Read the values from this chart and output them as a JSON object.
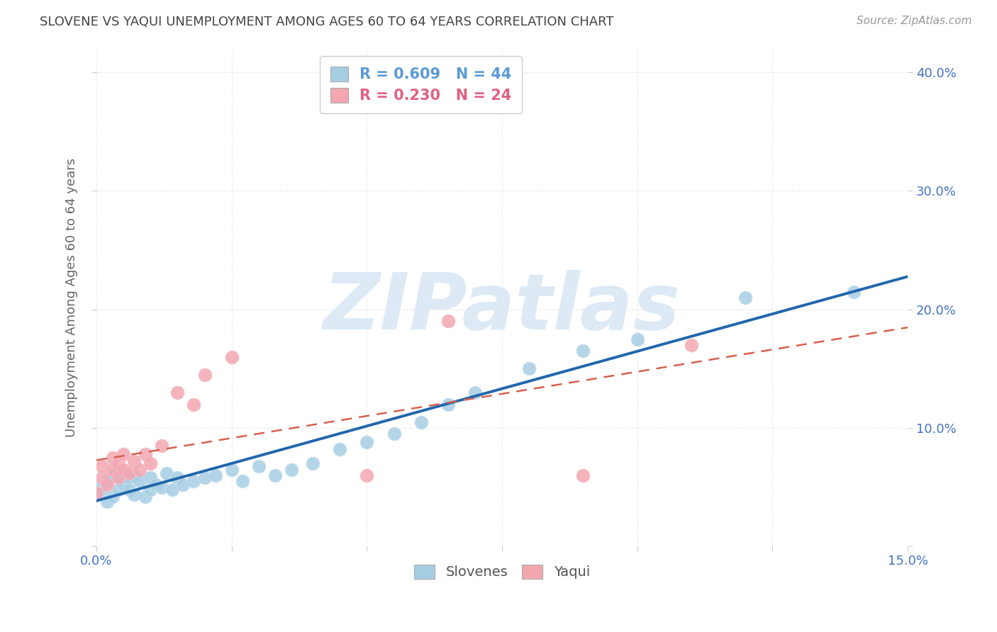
{
  "title": "SLOVENE VS YAQUI UNEMPLOYMENT AMONG AGES 60 TO 64 YEARS CORRELATION CHART",
  "source": "Source: ZipAtlas.com",
  "ylabel": "Unemployment Among Ages 60 to 64 years",
  "xlim": [
    0.0,
    0.15
  ],
  "ylim": [
    0.0,
    0.42
  ],
  "xticks": [
    0.0,
    0.025,
    0.05,
    0.075,
    0.1,
    0.125,
    0.15
  ],
  "xtick_labels": [
    "0.0%",
    "",
    "",
    "",
    "",
    "",
    "15.0%"
  ],
  "yticks": [
    0.0,
    0.1,
    0.2,
    0.3,
    0.4
  ],
  "ytick_labels_left": [
    "",
    "",
    "",
    "",
    ""
  ],
  "ytick_labels_right": [
    "",
    "10.0%",
    "20.0%",
    "30.0%",
    "40.0%"
  ],
  "legend1_label": "R = 0.609   N = 44",
  "legend2_label": "R = 0.230   N = 24",
  "legend1_text_color": "#5b9bd5",
  "legend2_text_color": "#e06080",
  "slovene_x": [
    0.0,
    0.001,
    0.002,
    0.002,
    0.003,
    0.003,
    0.004,
    0.004,
    0.005,
    0.005,
    0.006,
    0.006,
    0.007,
    0.007,
    0.008,
    0.009,
    0.01,
    0.01,
    0.011,
    0.012,
    0.013,
    0.014,
    0.015,
    0.016,
    0.018,
    0.02,
    0.022,
    0.025,
    0.027,
    0.03,
    0.033,
    0.036,
    0.04,
    0.045,
    0.05,
    0.055,
    0.06,
    0.065,
    0.07,
    0.08,
    0.09,
    0.1,
    0.12,
    0.14
  ],
  "slovene_y": [
    0.05,
    0.045,
    0.038,
    0.055,
    0.042,
    0.06,
    0.048,
    0.058,
    0.052,
    0.062,
    0.048,
    0.058,
    0.044,
    0.06,
    0.055,
    0.042,
    0.048,
    0.058,
    0.052,
    0.05,
    0.062,
    0.048,
    0.058,
    0.052,
    0.055,
    0.058,
    0.06,
    0.065,
    0.055,
    0.068,
    0.06,
    0.065,
    0.07,
    0.082,
    0.088,
    0.095,
    0.105,
    0.12,
    0.13,
    0.15,
    0.165,
    0.175,
    0.21,
    0.215
  ],
  "yaqui_x": [
    0.0,
    0.001,
    0.001,
    0.002,
    0.003,
    0.003,
    0.004,
    0.004,
    0.005,
    0.005,
    0.006,
    0.007,
    0.008,
    0.009,
    0.01,
    0.012,
    0.015,
    0.018,
    0.02,
    0.025,
    0.05,
    0.065,
    0.09,
    0.11
  ],
  "yaqui_y": [
    0.045,
    0.058,
    0.068,
    0.052,
    0.065,
    0.075,
    0.058,
    0.07,
    0.065,
    0.078,
    0.062,
    0.072,
    0.065,
    0.078,
    0.07,
    0.085,
    0.13,
    0.12,
    0.145,
    0.16,
    0.06,
    0.19,
    0.06,
    0.17
  ],
  "slovene_line_color": "#2166ac",
  "yaqui_line_color": "#d6604d",
  "yaqui_line_dash_color": "#d6604d",
  "slovene_marker_color": "#a6cee3",
  "yaqui_marker_color": "#f4a6b0",
  "watermark_text": "ZIPatlas",
  "watermark_color": "#ddeaf5",
  "background_color": "#ffffff",
  "grid_color": "#dddddd",
  "title_color": "#444444",
  "axis_label_color": "#666666",
  "tick_label_color": "#4472c4"
}
